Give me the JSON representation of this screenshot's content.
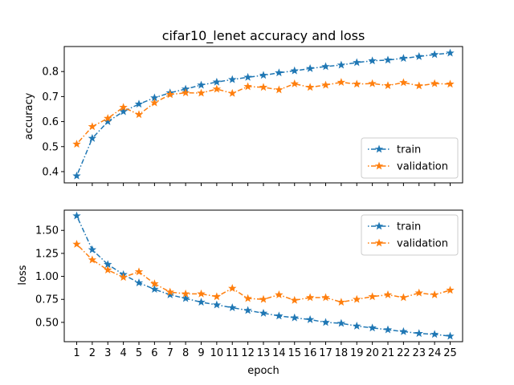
{
  "chart_data": [
    {
      "type": "line",
      "title": "cifar10_lenet accuracy and loss",
      "xlabel": "",
      "ylabel": "accuracy",
      "x": [
        1,
        2,
        3,
        4,
        5,
        6,
        7,
        8,
        9,
        10,
        11,
        12,
        13,
        14,
        15,
        16,
        17,
        18,
        19,
        20,
        21,
        22,
        23,
        24,
        25
      ],
      "xlim": [
        0.2,
        25.8
      ],
      "ylim": [
        0.355,
        0.9
      ],
      "yticks": [
        "0.4",
        "0.5",
        "0.6",
        "0.7",
        "0.8"
      ],
      "legend_position": "lower-right",
      "grid": false,
      "series": [
        {
          "name": "train",
          "color": "#1f77b4",
          "values": [
            0.383,
            0.533,
            0.6,
            0.64,
            0.67,
            0.695,
            0.715,
            0.73,
            0.746,
            0.758,
            0.768,
            0.777,
            0.785,
            0.795,
            0.803,
            0.812,
            0.82,
            0.826,
            0.836,
            0.843,
            0.846,
            0.853,
            0.86,
            0.868,
            0.874
          ]
        },
        {
          "name": "validation",
          "color": "#ff7f0e",
          "values": [
            0.51,
            0.58,
            0.613,
            0.657,
            0.628,
            0.675,
            0.708,
            0.715,
            0.714,
            0.73,
            0.713,
            0.74,
            0.737,
            0.727,
            0.751,
            0.737,
            0.746,
            0.757,
            0.75,
            0.752,
            0.744,
            0.756,
            0.743,
            0.752,
            0.75
          ]
        }
      ]
    },
    {
      "type": "line",
      "xlabel": "epoch",
      "ylabel": "loss",
      "x": [
        1,
        2,
        3,
        4,
        5,
        6,
        7,
        8,
        9,
        10,
        11,
        12,
        13,
        14,
        15,
        16,
        17,
        18,
        19,
        20,
        21,
        22,
        23,
        24,
        25
      ],
      "xticks": [
        "1",
        "2",
        "3",
        "4",
        "5",
        "6",
        "7",
        "8",
        "9",
        "10",
        "11",
        "12",
        "13",
        "14",
        "15",
        "16",
        "17",
        "18",
        "19",
        "20",
        "21",
        "22",
        "23",
        "24",
        "25"
      ],
      "xlim": [
        0.2,
        25.8
      ],
      "ylim": [
        0.29,
        1.72
      ],
      "yticks": [
        "0.50",
        "0.75",
        "1.00",
        "1.25",
        "1.50"
      ],
      "legend_position": "upper-right",
      "grid": false,
      "series": [
        {
          "name": "train",
          "color": "#1f77b4",
          "values": [
            1.658,
            1.29,
            1.13,
            1.02,
            0.93,
            0.86,
            0.8,
            0.76,
            0.72,
            0.69,
            0.66,
            0.63,
            0.6,
            0.57,
            0.55,
            0.53,
            0.5,
            0.49,
            0.46,
            0.44,
            0.42,
            0.4,
            0.38,
            0.37,
            0.35
          ]
        },
        {
          "name": "validation",
          "color": "#ff7f0e",
          "values": [
            1.35,
            1.18,
            1.07,
            0.99,
            1.05,
            0.92,
            0.83,
            0.81,
            0.81,
            0.78,
            0.87,
            0.76,
            0.75,
            0.8,
            0.74,
            0.77,
            0.77,
            0.72,
            0.75,
            0.78,
            0.8,
            0.77,
            0.82,
            0.8,
            0.85
          ]
        }
      ]
    }
  ]
}
